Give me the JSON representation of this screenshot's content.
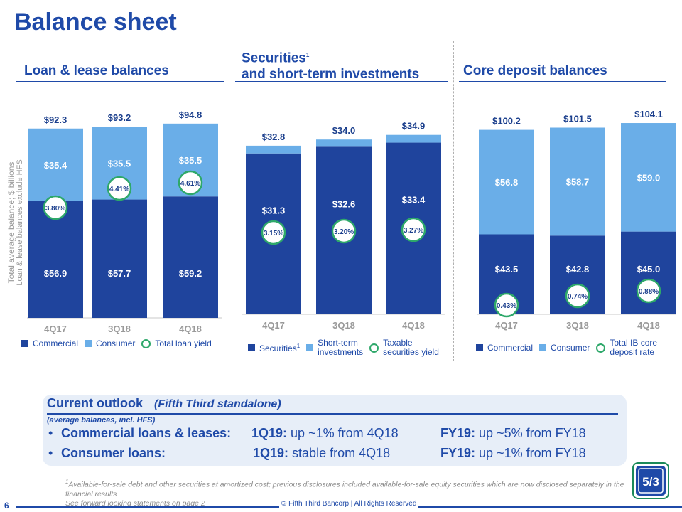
{
  "title": "Balance sheet",
  "y_axis_label": {
    "line1": "Total average balance; $ billions",
    "line2": "Loan & lease balances exclude HFS"
  },
  "colors": {
    "dark": "#1f449d",
    "light": "#6aaee8",
    "yield_ring": "#2ea86a",
    "accent": "#1f4aa8"
  },
  "chart_data": [
    {
      "type": "bar",
      "stacked": true,
      "title": "Loan & lease balances",
      "categories": [
        "4Q17",
        "3Q18",
        "4Q18"
      ],
      "ylim": [
        0,
        104
      ],
      "totals": [
        "$92.3",
        "$93.2",
        "$94.8"
      ],
      "total_values": [
        92.3,
        93.2,
        94.8
      ],
      "series": [
        {
          "name": "Commercial",
          "values": [
            56.9,
            57.7,
            59.2
          ],
          "labels": [
            "$56.9",
            "$57.7",
            "$59.2"
          ]
        },
        {
          "name": "Consumer",
          "values": [
            35.4,
            35.5,
            35.5
          ],
          "labels": [
            "$35.4",
            "$35.5",
            "$35.5"
          ]
        }
      ],
      "overlay": {
        "name": "Total loan yield",
        "values": [
          3.8,
          4.41,
          4.61
        ],
        "labels": [
          "3.80%",
          "4.41%",
          "4.61%"
        ],
        "level": [
          48,
          52,
          54
        ]
      },
      "legend": [
        {
          "label": "Commercial",
          "kind": "dark"
        },
        {
          "label": "Consumer",
          "kind": "light"
        },
        {
          "label": "Total loan yield",
          "kind": "ring"
        }
      ]
    },
    {
      "type": "bar",
      "stacked": true,
      "title_line1": "Securities",
      "title_sup": "1",
      "title_line2": "and short-term investments",
      "categories": [
        "4Q17",
        "3Q18",
        "4Q18"
      ],
      "ylim": [
        0,
        41.5
      ],
      "totals": [
        "$32.8",
        "$34.0",
        "$34.9"
      ],
      "total_values": [
        32.8,
        34.0,
        34.9
      ],
      "series": [
        {
          "name": "Securities",
          "values": [
            31.3,
            32.6,
            33.4
          ],
          "labels": [
            "$31.3",
            "$32.6",
            "$33.4"
          ]
        },
        {
          "name": "Short-term investments",
          "values": [
            1.5,
            1.4,
            1.5
          ],
          "labels": [
            "",
            "",
            ""
          ]
        }
      ],
      "overlay": {
        "name": "Taxable securities yield",
        "values": [
          3.15,
          3.2,
          3.27
        ],
        "labels": [
          "3.15%",
          "3.20%",
          "3.27%"
        ],
        "level": [
          16,
          16,
          17
        ]
      },
      "legend": [
        {
          "label": "Securities",
          "sup": "1",
          "kind": "dark"
        },
        {
          "label_line1": "Short-term",
          "label_line2": "investments",
          "kind": "light"
        },
        {
          "label_line1": "Taxable",
          "label_line2": "securities yield",
          "kind": "ring"
        }
      ]
    },
    {
      "type": "bar",
      "stacked": true,
      "title": "Core deposit balances",
      "categories": [
        "4Q17",
        "3Q18",
        "4Q18"
      ],
      "ylim": [
        0,
        116
      ],
      "totals": [
        "$100.2",
        "$101.5",
        "$104.1"
      ],
      "total_values": [
        100.2,
        101.5,
        104.1
      ],
      "series": [
        {
          "name": "Commercial",
          "values": [
            43.5,
            42.8,
            45.0
          ],
          "labels": [
            "$43.5",
            "$42.8",
            "$45.0"
          ]
        },
        {
          "name": "Consumer",
          "values": [
            56.8,
            58.7,
            59.0
          ],
          "labels": [
            "$56.8",
            "$58.7",
            "$59.0"
          ]
        }
      ],
      "overlay": {
        "name": "Total IB core deposit rate",
        "values": [
          0.43,
          0.74,
          0.88
        ],
        "labels": [
          "0.43%",
          "0.74%",
          "0.88%"
        ],
        "level": [
          4,
          8,
          10
        ]
      },
      "legend": [
        {
          "label": "Commercial",
          "kind": "dark"
        },
        {
          "label": "Consumer",
          "kind": "light"
        },
        {
          "label_line1": "Total IB core",
          "label_line2": "deposit rate",
          "kind": "ring"
        }
      ]
    }
  ],
  "outlook": {
    "heading": "Current outlook",
    "qualifier": "(Fifth Third standalone)",
    "note": "(average balances, incl. HFS)",
    "rows": [
      {
        "label": "Commercial loans & leases:",
        "q_period": "1Q19:",
        "q_text": "up ~1% from 4Q18",
        "fy_period": "FY19:",
        "fy_text": "up ~5% from FY18"
      },
      {
        "label": "Consumer loans:",
        "q_period": "1Q19:",
        "q_text": "stable from 4Q18",
        "fy_period": "FY19:",
        "fy_text": "up ~1% from FY18"
      }
    ]
  },
  "footnote": {
    "line1": "Available-for-sale debt and other securities at amortized cost; previous disclosures included available-for-sale equity securities which are now disclosed separately in the financial results",
    "sup": "1",
    "line2": "See forward looking statements on page 2"
  },
  "page_number": "6",
  "copyright": "© Fifth Third Bancorp | All Rights Reserved",
  "logo_text": "5/3"
}
